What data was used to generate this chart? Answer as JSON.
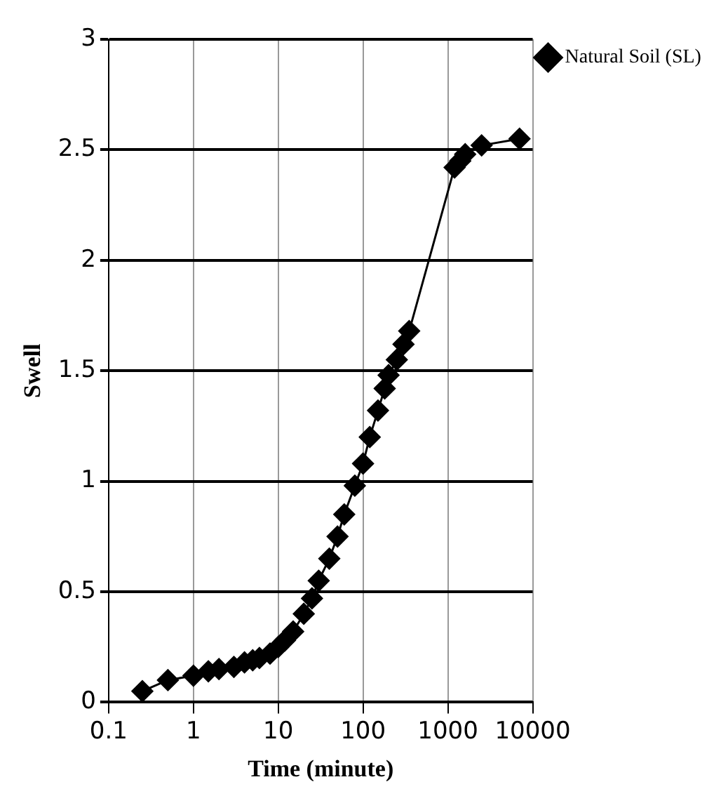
{
  "chart_data": {
    "type": "line",
    "xlabel": "Time (minute)",
    "ylabel": "Swell",
    "x": [
      0.25,
      0.5,
      1,
      1.5,
      2,
      3,
      4,
      5,
      6,
      8,
      10,
      12,
      15,
      20,
      25,
      30,
      40,
      50,
      60,
      80,
      100,
      120,
      150,
      180,
      200,
      250,
      300,
      350,
      1200,
      1400,
      1600,
      2500,
      7000
    ],
    "series": [
      {
        "name": "Natural Soil (SL)",
        "color": "#000000",
        "values": [
          0.05,
          0.1,
          0.12,
          0.14,
          0.15,
          0.16,
          0.18,
          0.19,
          0.2,
          0.22,
          0.25,
          0.28,
          0.32,
          0.4,
          0.47,
          0.55,
          0.65,
          0.75,
          0.85,
          0.98,
          1.08,
          1.2,
          1.32,
          1.42,
          1.48,
          1.55,
          1.62,
          1.68,
          2.42,
          2.45,
          2.48,
          2.52,
          2.55
        ]
      }
    ],
    "log": "x",
    "xlim": [
      0.1,
      10000
    ],
    "xticks": [
      0.1,
      1,
      10,
      100,
      1000,
      10000
    ],
    "ylim": [
      0,
      3
    ],
    "yticks": [
      0,
      0.5,
      1,
      1.5,
      2,
      2.5,
      3
    ],
    "grid": true,
    "legend": "right",
    "marker": "diamond",
    "line_style": "solid"
  }
}
